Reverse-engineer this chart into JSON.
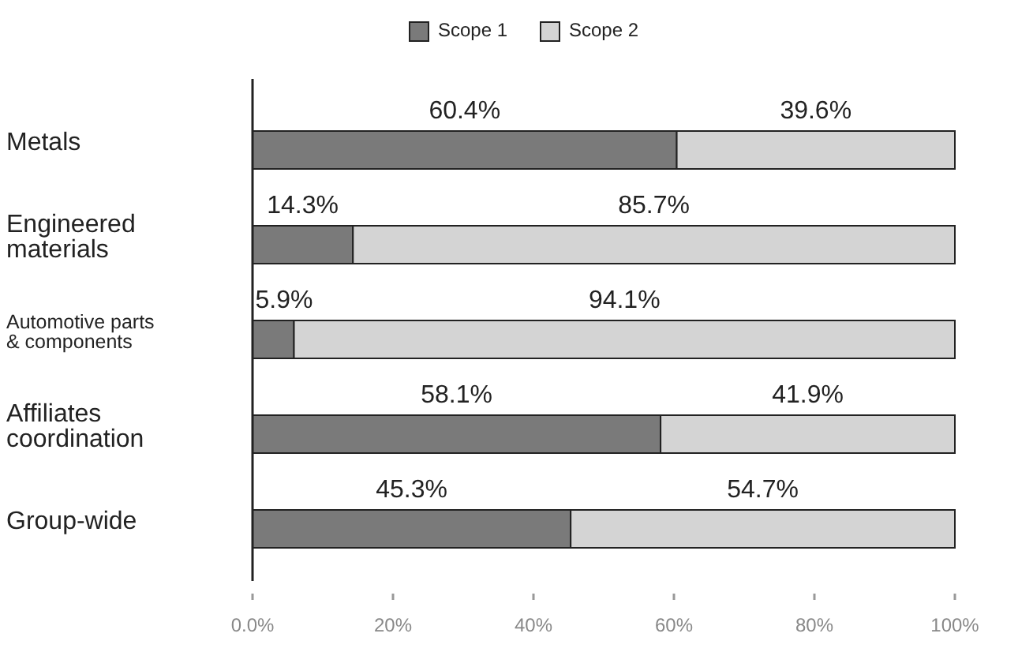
{
  "chart_data": {
    "type": "bar",
    "orientation": "horizontal",
    "stacked": true,
    "legend": "top",
    "categories": [
      "Metals",
      "Engineered materials",
      "Automotive parts & components",
      "Affiliates coordination",
      "Group-wide"
    ],
    "series": [
      {
        "name": "Scope 1",
        "color": "#7a7a7a",
        "values": [
          60.4,
          14.3,
          5.9,
          58.1,
          45.3
        ],
        "value_labels": [
          "60.4%",
          "14.3%",
          "5.9%",
          "58.1%",
          "45.3%"
        ]
      },
      {
        "name": "Scope 2",
        "color": "#d4d4d4",
        "values": [
          39.6,
          85.7,
          94.1,
          41.9,
          54.7
        ],
        "value_labels": [
          "39.6%",
          "85.7%",
          "94.1%",
          "41.9%",
          "54.7%"
        ]
      }
    ],
    "xlim": [
      0,
      100
    ],
    "xticks": [
      {
        "value": 0,
        "label": "0.0%"
      },
      {
        "value": 20,
        "label": "20%"
      },
      {
        "value": 40,
        "label": "40%"
      },
      {
        "value": 60,
        "label": "60%"
      },
      {
        "value": 80,
        "label": "80%"
      },
      {
        "value": 100,
        "label": "100%"
      }
    ]
  }
}
